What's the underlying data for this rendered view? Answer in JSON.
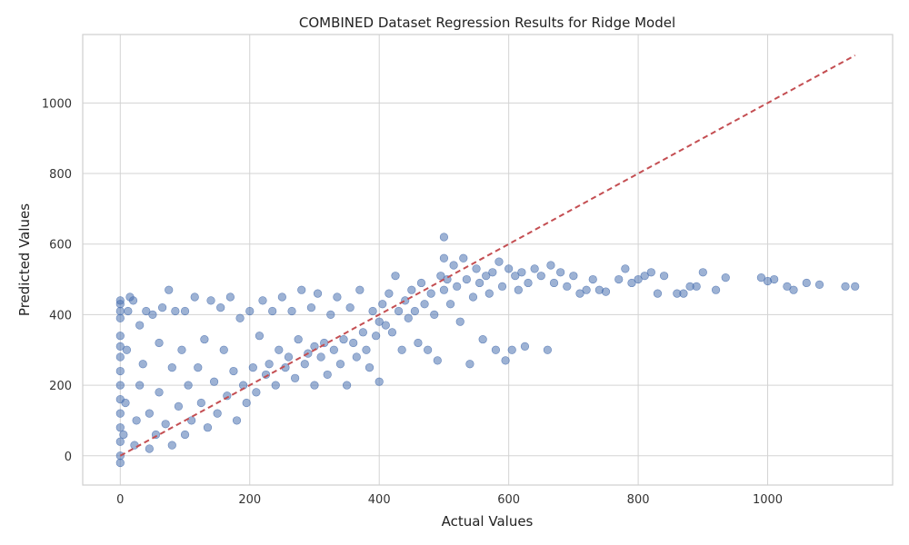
{
  "chart_data": {
    "type": "scatter",
    "title": "COMBINED Dataset Regression Results for Ridge Model",
    "xlabel": "Actual Values",
    "ylabel": "Predicted Values",
    "xlim": [
      -58,
      1193
    ],
    "ylim": [
      -83,
      1194
    ],
    "xticks": [
      0,
      200,
      400,
      600,
      800,
      1000
    ],
    "yticks": [
      0,
      200,
      400,
      600,
      800,
      1000
    ],
    "xtick_labels": [
      "0",
      "200",
      "400",
      "600",
      "800",
      "1000"
    ],
    "ytick_labels": [
      "0",
      "200",
      "400",
      "600",
      "800",
      "1000"
    ],
    "grid": true,
    "point_color": "#4c72b0",
    "reference_line_color": "#c44e52",
    "series": [
      {
        "kind": "points",
        "points": [
          [
            0,
            -20
          ],
          [
            0,
            0
          ],
          [
            0,
            40
          ],
          [
            0,
            80
          ],
          [
            0,
            120
          ],
          [
            0,
            160
          ],
          [
            0,
            200
          ],
          [
            0,
            240
          ],
          [
            0,
            280
          ],
          [
            0,
            310
          ],
          [
            0,
            340
          ],
          [
            0,
            390
          ],
          [
            0,
            410
          ],
          [
            0,
            430
          ],
          [
            0,
            440
          ],
          [
            5,
            60
          ],
          [
            8,
            150
          ],
          [
            10,
            300
          ],
          [
            12,
            410
          ],
          [
            15,
            450
          ],
          [
            20,
            440
          ],
          [
            22,
            30
          ],
          [
            25,
            100
          ],
          [
            30,
            200
          ],
          [
            30,
            370
          ],
          [
            35,
            260
          ],
          [
            40,
            410
          ],
          [
            45,
            20
          ],
          [
            45,
            120
          ],
          [
            50,
            400
          ],
          [
            55,
            60
          ],
          [
            60,
            180
          ],
          [
            60,
            320
          ],
          [
            65,
            420
          ],
          [
            70,
            90
          ],
          [
            75,
            470
          ],
          [
            80,
            30
          ],
          [
            80,
            250
          ],
          [
            85,
            410
          ],
          [
            90,
            140
          ],
          [
            95,
            300
          ],
          [
            100,
            60
          ],
          [
            100,
            410
          ],
          [
            105,
            200
          ],
          [
            110,
            100
          ],
          [
            115,
            450
          ],
          [
            120,
            250
          ],
          [
            125,
            150
          ],
          [
            130,
            330
          ],
          [
            135,
            80
          ],
          [
            140,
            440
          ],
          [
            145,
            210
          ],
          [
            150,
            120
          ],
          [
            155,
            420
          ],
          [
            160,
            300
          ],
          [
            165,
            170
          ],
          [
            170,
            450
          ],
          [
            175,
            240
          ],
          [
            180,
            100
          ],
          [
            185,
            390
          ],
          [
            190,
            200
          ],
          [
            195,
            150
          ],
          [
            200,
            410
          ],
          [
            205,
            250
          ],
          [
            210,
            180
          ],
          [
            215,
            340
          ],
          [
            220,
            440
          ],
          [
            225,
            230
          ],
          [
            230,
            260
          ],
          [
            235,
            410
          ],
          [
            240,
            200
          ],
          [
            245,
            300
          ],
          [
            250,
            450
          ],
          [
            255,
            250
          ],
          [
            260,
            280
          ],
          [
            265,
            410
          ],
          [
            270,
            220
          ],
          [
            275,
            330
          ],
          [
            280,
            470
          ],
          [
            285,
            260
          ],
          [
            290,
            290
          ],
          [
            295,
            420
          ],
          [
            300,
            200
          ],
          [
            300,
            310
          ],
          [
            305,
            460
          ],
          [
            310,
            280
          ],
          [
            315,
            320
          ],
          [
            320,
            230
          ],
          [
            325,
            400
          ],
          [
            330,
            300
          ],
          [
            335,
            450
          ],
          [
            340,
            260
          ],
          [
            345,
            330
          ],
          [
            350,
            200
          ],
          [
            355,
            420
          ],
          [
            360,
            320
          ],
          [
            365,
            280
          ],
          [
            370,
            470
          ],
          [
            375,
            350
          ],
          [
            380,
            300
          ],
          [
            385,
            250
          ],
          [
            390,
            410
          ],
          [
            395,
            340
          ],
          [
            400,
            380
          ],
          [
            400,
            210
          ],
          [
            405,
            430
          ],
          [
            410,
            370
          ],
          [
            415,
            460
          ],
          [
            420,
            350
          ],
          [
            425,
            510
          ],
          [
            430,
            410
          ],
          [
            435,
            300
          ],
          [
            440,
            440
          ],
          [
            445,
            390
          ],
          [
            450,
            470
          ],
          [
            455,
            410
          ],
          [
            460,
            320
          ],
          [
            465,
            490
          ],
          [
            470,
            430
          ],
          [
            475,
            300
          ],
          [
            480,
            460
          ],
          [
            485,
            400
          ],
          [
            490,
            270
          ],
          [
            495,
            510
          ],
          [
            500,
            620
          ],
          [
            500,
            560
          ],
          [
            500,
            470
          ],
          [
            505,
            500
          ],
          [
            510,
            430
          ],
          [
            515,
            540
          ],
          [
            520,
            480
          ],
          [
            525,
            380
          ],
          [
            530,
            560
          ],
          [
            535,
            500
          ],
          [
            540,
            260
          ],
          [
            545,
            450
          ],
          [
            550,
            530
          ],
          [
            555,
            490
          ],
          [
            560,
            330
          ],
          [
            565,
            510
          ],
          [
            570,
            460
          ],
          [
            575,
            520
          ],
          [
            580,
            300
          ],
          [
            585,
            550
          ],
          [
            590,
            480
          ],
          [
            595,
            270
          ],
          [
            600,
            530
          ],
          [
            605,
            300
          ],
          [
            610,
            510
          ],
          [
            615,
            470
          ],
          [
            620,
            520
          ],
          [
            625,
            310
          ],
          [
            630,
            490
          ],
          [
            640,
            530
          ],
          [
            650,
            510
          ],
          [
            660,
            300
          ],
          [
            665,
            540
          ],
          [
            670,
            490
          ],
          [
            680,
            520
          ],
          [
            690,
            480
          ],
          [
            700,
            510
          ],
          [
            710,
            460
          ],
          [
            720,
            470
          ],
          [
            730,
            500
          ],
          [
            740,
            470
          ],
          [
            750,
            465
          ],
          [
            770,
            500
          ],
          [
            780,
            530
          ],
          [
            790,
            490
          ],
          [
            800,
            500
          ],
          [
            810,
            510
          ],
          [
            820,
            520
          ],
          [
            830,
            460
          ],
          [
            840,
            510
          ],
          [
            860,
            460
          ],
          [
            870,
            460
          ],
          [
            880,
            480
          ],
          [
            890,
            480
          ],
          [
            900,
            520
          ],
          [
            920,
            470
          ],
          [
            935,
            505
          ],
          [
            990,
            505
          ],
          [
            1000,
            495
          ],
          [
            1010,
            500
          ],
          [
            1030,
            480
          ],
          [
            1040,
            470
          ],
          [
            1060,
            490
          ],
          [
            1080,
            485
          ],
          [
            1120,
            480
          ],
          [
            1135,
            480
          ]
        ]
      },
      {
        "kind": "reference_line",
        "x": [
          0,
          1135
        ],
        "y": [
          0,
          1135
        ]
      }
    ]
  }
}
